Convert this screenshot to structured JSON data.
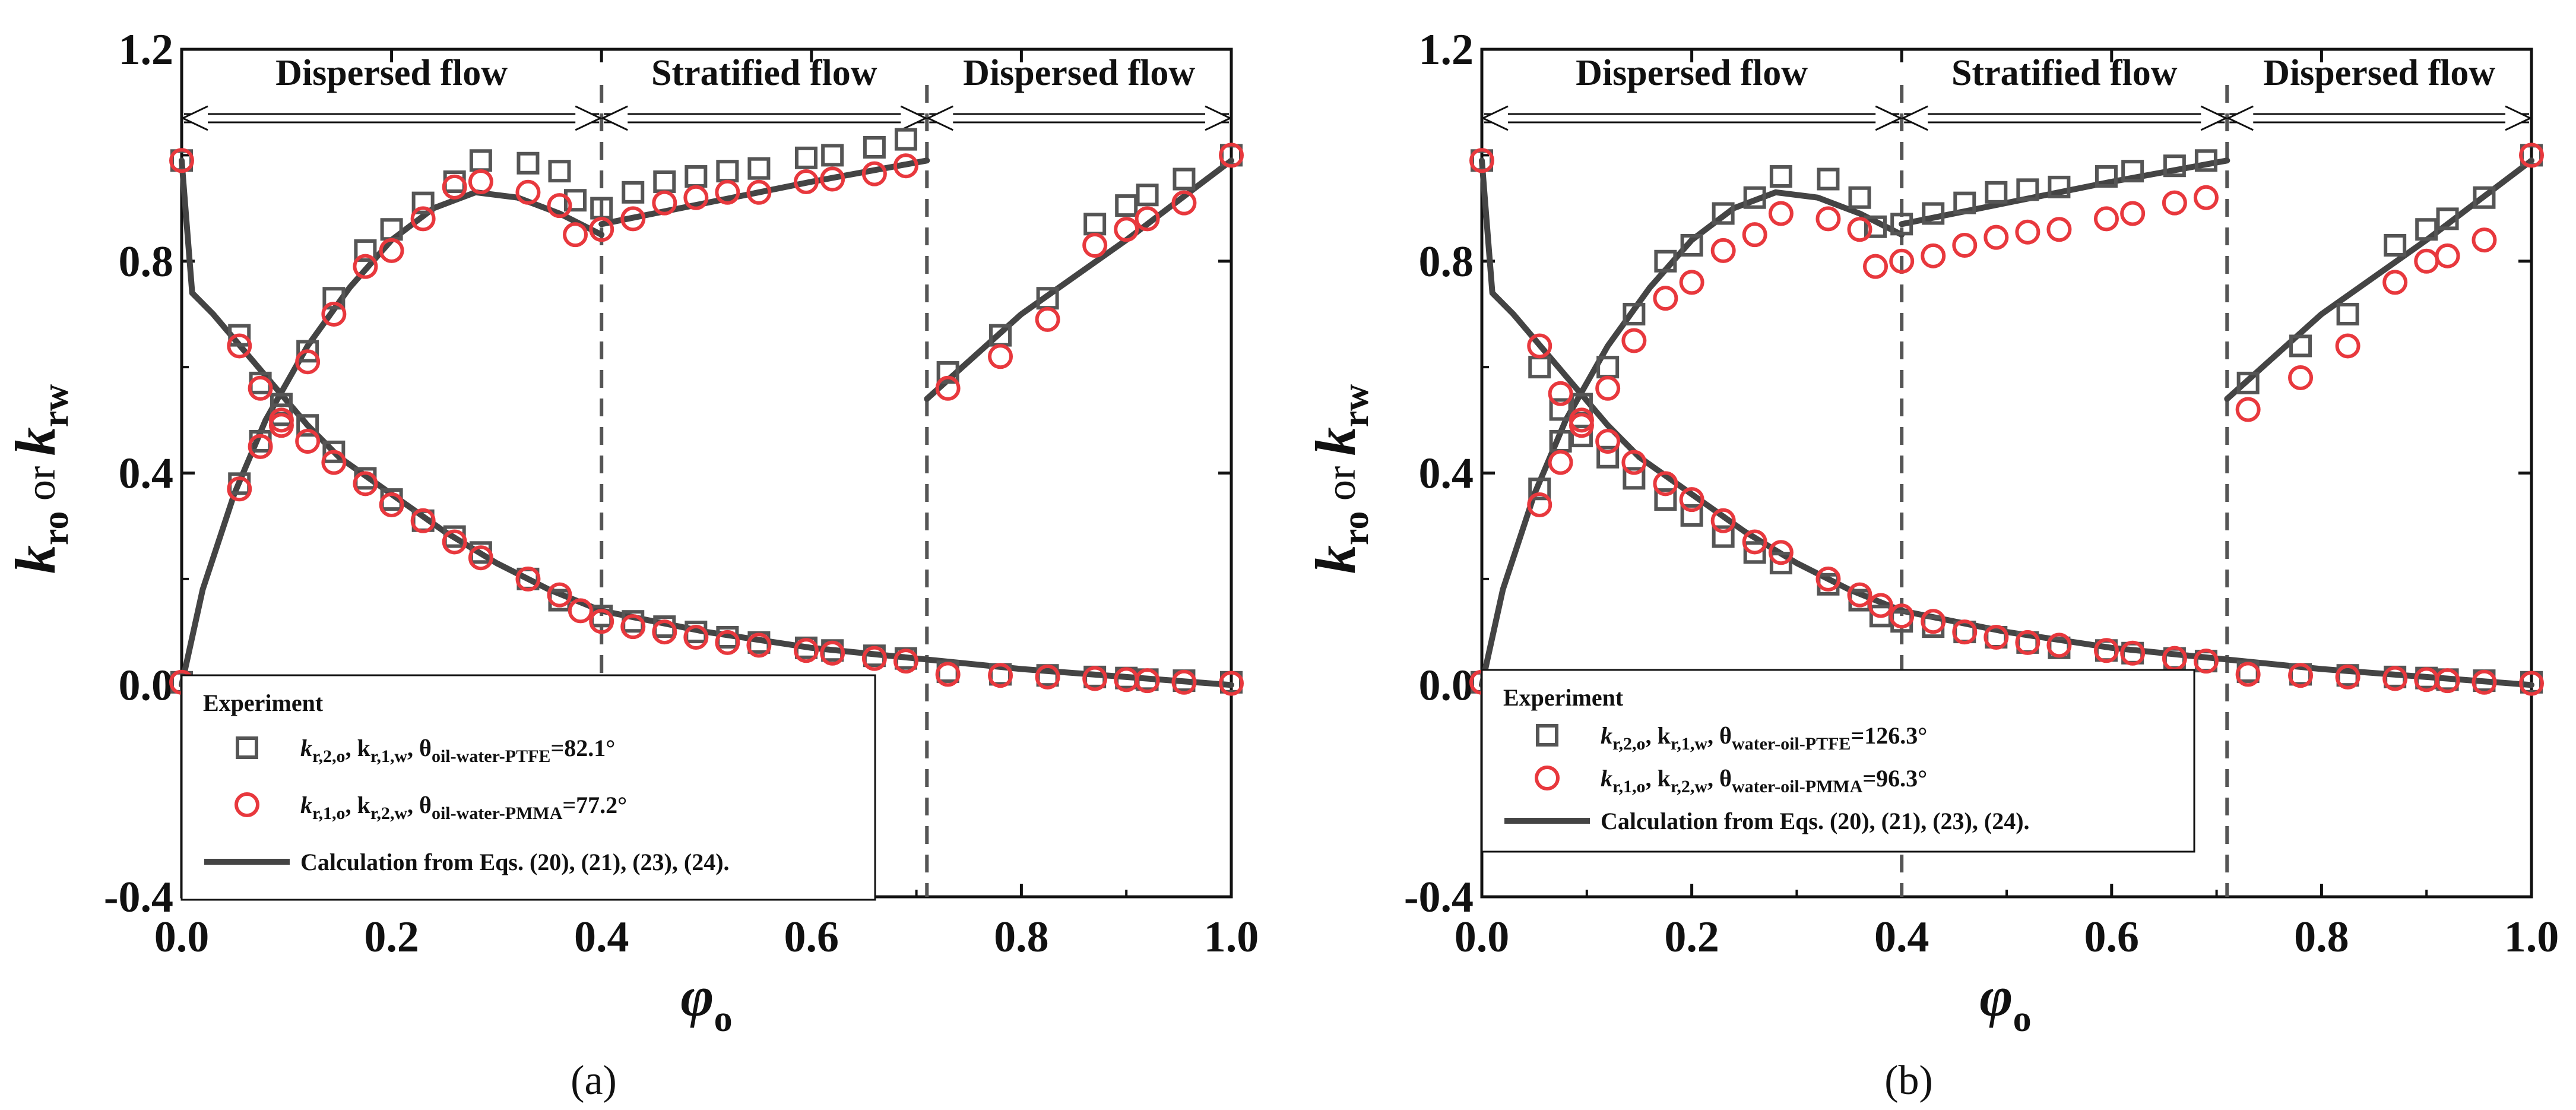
{
  "chart_data": [
    {
      "type": "scatter",
      "panel_caption": "(a)",
      "xlabel": "φo",
      "xlabel_main": "φ",
      "xlabel_sub": "o",
      "ylabel": "kro or krw",
      "ylabel_k1": "k",
      "ylabel_sub1": "ro",
      "ylabel_or": "or",
      "ylabel_k2": "k",
      "ylabel_sub2": "rw",
      "xlim": [
        0.0,
        1.0
      ],
      "ylim": [
        -0.4,
        1.2
      ],
      "xticks": [
        0.0,
        0.2,
        0.4,
        0.6,
        0.8,
        1.0
      ],
      "xtick_labels": [
        "0.0",
        "0.2",
        "0.4",
        "0.6",
        "0.8",
        "1.0"
      ],
      "yticks": [
        -0.4,
        0.0,
        0.4,
        0.8,
        1.2
      ],
      "ytick_labels": [
        "-0.4",
        "0.0",
        "0.4",
        "0.8",
        "1.2"
      ],
      "regions": [
        {
          "label": "Dispersed flow",
          "x_start": 0.0,
          "x_end": 0.4
        },
        {
          "label": "Stratified flow",
          "x_start": 0.4,
          "x_end": 0.71
        },
        {
          "label": "Dispersed flow",
          "x_start": 0.71,
          "x_end": 1.0
        }
      ],
      "region_boundaries": [
        0.4,
        0.71
      ],
      "legend": {
        "title": "Experiment",
        "entries": [
          {
            "marker": "square",
            "color": "#555555",
            "text_a": "k",
            "sub_a": "r,2,o",
            "text_b": ", k",
            "sub_b": "r,1,w",
            "text_c": ", θ",
            "sub_c": "oil-water-PTFE",
            "text_d": "=82.1°"
          },
          {
            "marker": "circle",
            "color": "#e8383d",
            "text_a": "k",
            "sub_a": "r,1,o",
            "text_b": ", k",
            "sub_b": "r,2,w",
            "text_c": ", θ",
            "sub_c": "oil-water-PMMA",
            "text_d": "=77.2°"
          },
          {
            "marker": "line",
            "color": "#444444",
            "text": "Calculation from Eqs. (20), (21), (23), (24)."
          }
        ]
      },
      "series": [
        {
          "name": "kr,2,o, kr,1,w, θoil-water-PTFE=82.1° (squares)",
          "marker": "square",
          "color": "#555555",
          "x": [
            0.0,
            0.055,
            0.075,
            0.095,
            0.12,
            0.145,
            0.175,
            0.2,
            0.23,
            0.26,
            0.285,
            0.33,
            0.36,
            0.4,
            0.43,
            0.46,
            0.49,
            0.52,
            0.55,
            0.595,
            0.62,
            0.66,
            0.69,
            0.73,
            0.78,
            0.825,
            0.87,
            0.9,
            0.92,
            0.955,
            1.0,
            0.0,
            0.055,
            0.075,
            0.095,
            0.12,
            0.145,
            0.175,
            0.2,
            0.23,
            0.26,
            0.285,
            0.33,
            0.36,
            0.375,
            0.4,
            0.43,
            0.46,
            0.49,
            0.52,
            0.55,
            0.595,
            0.62,
            0.66,
            0.69,
            0.73,
            0.78,
            0.825,
            0.87,
            0.9,
            0.92,
            0.955,
            1.0
          ],
          "y": [
            0.99,
            0.66,
            0.57,
            0.53,
            0.49,
            0.44,
            0.39,
            0.35,
            0.31,
            0.28,
            0.25,
            0.2,
            0.16,
            0.13,
            0.12,
            0.11,
            0.1,
            0.09,
            0.08,
            0.07,
            0.065,
            0.055,
            0.05,
            0.025,
            0.02,
            0.018,
            0.015,
            0.013,
            0.01,
            0.008,
            0.005,
            0.005,
            0.38,
            0.46,
            0.51,
            0.63,
            0.73,
            0.82,
            0.86,
            0.91,
            0.95,
            0.99,
            0.985,
            0.97,
            0.915,
            0.9,
            0.93,
            0.95,
            0.96,
            0.97,
            0.975,
            0.995,
            1.0,
            1.015,
            1.03,
            0.59,
            0.66,
            0.73,
            0.87,
            0.905,
            0.925,
            0.955,
            1.0
          ]
        },
        {
          "name": "kr,1,o, kr,2,w, θoil-water-PMMA=77.2° (circles)",
          "marker": "circle",
          "color": "#e8383d",
          "x": [
            0.0,
            0.055,
            0.075,
            0.095,
            0.12,
            0.145,
            0.175,
            0.2,
            0.23,
            0.26,
            0.285,
            0.33,
            0.36,
            0.38,
            0.4,
            0.43,
            0.46,
            0.49,
            0.52,
            0.55,
            0.595,
            0.62,
            0.66,
            0.69,
            0.73,
            0.78,
            0.825,
            0.87,
            0.9,
            0.92,
            0.955,
            1.0,
            0.0,
            0.055,
            0.075,
            0.095,
            0.12,
            0.145,
            0.175,
            0.2,
            0.23,
            0.26,
            0.285,
            0.33,
            0.36,
            0.375,
            0.4,
            0.43,
            0.46,
            0.49,
            0.52,
            0.55,
            0.595,
            0.62,
            0.66,
            0.69,
            0.73,
            0.78,
            0.825,
            0.87,
            0.9,
            0.92,
            0.955,
            1.0
          ],
          "y": [
            0.99,
            0.64,
            0.56,
            0.5,
            0.46,
            0.42,
            0.38,
            0.34,
            0.31,
            0.27,
            0.24,
            0.2,
            0.17,
            0.14,
            0.12,
            0.11,
            0.1,
            0.09,
            0.08,
            0.075,
            0.065,
            0.06,
            0.05,
            0.045,
            0.02,
            0.018,
            0.015,
            0.012,
            0.01,
            0.008,
            0.005,
            0.003,
            0.005,
            0.37,
            0.45,
            0.49,
            0.61,
            0.7,
            0.79,
            0.82,
            0.88,
            0.94,
            0.95,
            0.93,
            0.905,
            0.85,
            0.86,
            0.88,
            0.91,
            0.92,
            0.93,
            0.93,
            0.95,
            0.955,
            0.965,
            0.98,
            0.56,
            0.62,
            0.69,
            0.83,
            0.86,
            0.88,
            0.91,
            1.0
          ]
        },
        {
          "name": "Calculation from Eqs. (20), (21), (23), (24).",
          "marker": "line",
          "color": "#444444",
          "segments": [
            {
              "x": [
                0.0,
                0.01,
                0.03,
                0.06,
                0.09,
                0.12,
                0.15,
                0.2,
                0.25,
                0.3,
                0.35,
                0.4,
                0.5,
                0.6,
                0.7,
                0.8,
                0.9,
                1.0
              ],
              "y": [
                0.99,
                0.74,
                0.7,
                0.63,
                0.56,
                0.49,
                0.43,
                0.36,
                0.29,
                0.23,
                0.18,
                0.14,
                0.1,
                0.07,
                0.05,
                0.03,
                0.015,
                0.0
              ]
            },
            {
              "x": [
                0.0,
                0.02,
                0.05,
                0.08,
                0.12,
                0.16,
                0.2,
                0.24,
                0.28,
                0.32,
                0.36,
                0.4
              ],
              "y": [
                0.0,
                0.18,
                0.36,
                0.5,
                0.64,
                0.75,
                0.84,
                0.9,
                0.93,
                0.92,
                0.89,
                0.85
              ]
            },
            {
              "x": [
                0.4,
                0.5,
                0.6,
                0.71
              ],
              "y": [
                0.87,
                0.91,
                0.95,
                0.99
              ]
            },
            {
              "x": [
                0.71,
                0.8,
                0.9,
                1.0
              ],
              "y": [
                0.54,
                0.7,
                0.84,
                0.99
              ]
            }
          ]
        }
      ]
    },
    {
      "type": "scatter",
      "panel_caption": "(b)",
      "xlabel": "φo",
      "xlabel_main": "φ",
      "xlabel_sub": "o",
      "ylabel": "kro or krw",
      "ylabel_k1": "k",
      "ylabel_sub1": "ro",
      "ylabel_or": "or",
      "ylabel_k2": "k",
      "ylabel_sub2": "rw",
      "xlim": [
        0.0,
        1.0
      ],
      "ylim": [
        -0.4,
        1.2
      ],
      "xticks": [
        0.0,
        0.2,
        0.4,
        0.6,
        0.8,
        1.0
      ],
      "xtick_labels": [
        "0.0",
        "0.2",
        "0.4",
        "0.6",
        "0.8",
        "1.0"
      ],
      "yticks": [
        -0.4,
        0.0,
        0.4,
        0.8,
        1.2
      ],
      "ytick_labels": [
        "-0.4",
        "0.0",
        "0.4",
        "0.8",
        "1.2"
      ],
      "regions": [
        {
          "label": "Dispersed flow",
          "x_start": 0.0,
          "x_end": 0.4
        },
        {
          "label": "Stratified flow",
          "x_start": 0.4,
          "x_end": 0.71
        },
        {
          "label": "Dispersed flow",
          "x_start": 0.71,
          "x_end": 1.0
        }
      ],
      "region_boundaries": [
        0.4,
        0.71
      ],
      "legend": {
        "title": "Experiment",
        "entries": [
          {
            "marker": "square",
            "color": "#555555",
            "text_a": "k",
            "sub_a": "r,2,o",
            "text_b": ", k",
            "sub_b": "r,1,w",
            "text_c": ", θ",
            "sub_c": "water-oil-PTFE",
            "text_d": "=126.3°"
          },
          {
            "marker": "circle",
            "color": "#e8383d",
            "text_a": "k",
            "sub_a": "r,1,o",
            "text_b": ", k",
            "sub_b": "r,2,w",
            "text_c": ", θ",
            "sub_c": "water-oil-PMMA",
            "text_d": "=96.3°"
          },
          {
            "marker": "line",
            "color": "#444444",
            "text": "Calculation from Eqs. (20), (21), (23), (24)."
          }
        ]
      },
      "series": [
        {
          "name": "kr,2,o, kr,1,w, θwater-oil-PTFE=126.3° (squares)",
          "marker": "square",
          "color": "#555555",
          "x": [
            0.0,
            0.055,
            0.075,
            0.095,
            0.12,
            0.145,
            0.175,
            0.2,
            0.23,
            0.26,
            0.285,
            0.33,
            0.36,
            0.38,
            0.4,
            0.43,
            0.46,
            0.49,
            0.52,
            0.55,
            0.595,
            0.62,
            0.66,
            0.69,
            0.73,
            0.78,
            0.825,
            0.87,
            0.9,
            0.92,
            0.955,
            1.0,
            0.0,
            0.055,
            0.075,
            0.095,
            0.12,
            0.145,
            0.175,
            0.2,
            0.23,
            0.26,
            0.285,
            0.33,
            0.36,
            0.375,
            0.4,
            0.43,
            0.46,
            0.49,
            0.52,
            0.55,
            0.595,
            0.62,
            0.66,
            0.69,
            0.73,
            0.78,
            0.825,
            0.87,
            0.9,
            0.92,
            0.955,
            1.0
          ],
          "y": [
            0.99,
            0.6,
            0.52,
            0.47,
            0.43,
            0.39,
            0.35,
            0.32,
            0.28,
            0.25,
            0.23,
            0.19,
            0.16,
            0.13,
            0.12,
            0.11,
            0.1,
            0.09,
            0.08,
            0.07,
            0.065,
            0.06,
            0.05,
            0.045,
            0.025,
            0.02,
            0.018,
            0.015,
            0.013,
            0.01,
            0.008,
            0.005,
            0.005,
            0.37,
            0.46,
            0.53,
            0.6,
            0.7,
            0.8,
            0.83,
            0.89,
            0.92,
            0.96,
            0.955,
            0.92,
            0.865,
            0.87,
            0.89,
            0.91,
            0.93,
            0.935,
            0.94,
            0.96,
            0.97,
            0.98,
            0.99,
            0.57,
            0.64,
            0.7,
            0.83,
            0.86,
            0.88,
            0.92,
            1.0
          ]
        },
        {
          "name": "kr,1,o, kr,2,w, θwater-oil-PMMA=96.3° (circles)",
          "marker": "circle",
          "color": "#e8383d",
          "x": [
            0.0,
            0.055,
            0.075,
            0.095,
            0.12,
            0.145,
            0.175,
            0.2,
            0.23,
            0.26,
            0.285,
            0.33,
            0.36,
            0.38,
            0.4,
            0.43,
            0.46,
            0.49,
            0.52,
            0.55,
            0.595,
            0.62,
            0.66,
            0.69,
            0.73,
            0.78,
            0.825,
            0.87,
            0.9,
            0.92,
            0.955,
            1.0,
            0.0,
            0.055,
            0.075,
            0.095,
            0.12,
            0.145,
            0.175,
            0.2,
            0.23,
            0.26,
            0.285,
            0.33,
            0.36,
            0.375,
            0.4,
            0.43,
            0.46,
            0.49,
            0.52,
            0.55,
            0.595,
            0.62,
            0.66,
            0.69,
            0.73,
            0.78,
            0.825,
            0.87,
            0.9,
            0.92,
            0.955,
            1.0
          ],
          "y": [
            0.99,
            0.64,
            0.55,
            0.5,
            0.46,
            0.42,
            0.38,
            0.35,
            0.31,
            0.27,
            0.25,
            0.2,
            0.17,
            0.15,
            0.13,
            0.12,
            0.1,
            0.09,
            0.08,
            0.075,
            0.065,
            0.06,
            0.05,
            0.045,
            0.02,
            0.018,
            0.015,
            0.012,
            0.01,
            0.008,
            0.005,
            0.003,
            0.005,
            0.34,
            0.42,
            0.49,
            0.56,
            0.65,
            0.73,
            0.76,
            0.82,
            0.85,
            0.89,
            0.88,
            0.86,
            0.79,
            0.8,
            0.81,
            0.83,
            0.845,
            0.855,
            0.86,
            0.88,
            0.89,
            0.91,
            0.92,
            0.52,
            0.58,
            0.64,
            0.76,
            0.8,
            0.81,
            0.84,
            1.0
          ]
        },
        {
          "name": "Calculation from Eqs. (20), (21), (23), (24).",
          "marker": "line",
          "color": "#444444",
          "segments": [
            {
              "x": [
                0.0,
                0.01,
                0.03,
                0.06,
                0.09,
                0.12,
                0.15,
                0.2,
                0.25,
                0.3,
                0.35,
                0.4,
                0.5,
                0.6,
                0.7,
                0.8,
                0.9,
                1.0
              ],
              "y": [
                0.99,
                0.74,
                0.7,
                0.63,
                0.56,
                0.49,
                0.43,
                0.36,
                0.29,
                0.23,
                0.18,
                0.14,
                0.1,
                0.07,
                0.05,
                0.03,
                0.015,
                0.0
              ]
            },
            {
              "x": [
                0.0,
                0.02,
                0.05,
                0.08,
                0.12,
                0.16,
                0.2,
                0.24,
                0.28,
                0.32,
                0.36,
                0.4
              ],
              "y": [
                0.0,
                0.18,
                0.36,
                0.5,
                0.64,
                0.75,
                0.84,
                0.9,
                0.93,
                0.92,
                0.89,
                0.85
              ]
            },
            {
              "x": [
                0.4,
                0.5,
                0.6,
                0.71
              ],
              "y": [
                0.87,
                0.91,
                0.95,
                0.99
              ]
            },
            {
              "x": [
                0.71,
                0.8,
                0.9,
                1.0
              ],
              "y": [
                0.54,
                0.7,
                0.84,
                0.99
              ]
            }
          ]
        }
      ]
    }
  ]
}
